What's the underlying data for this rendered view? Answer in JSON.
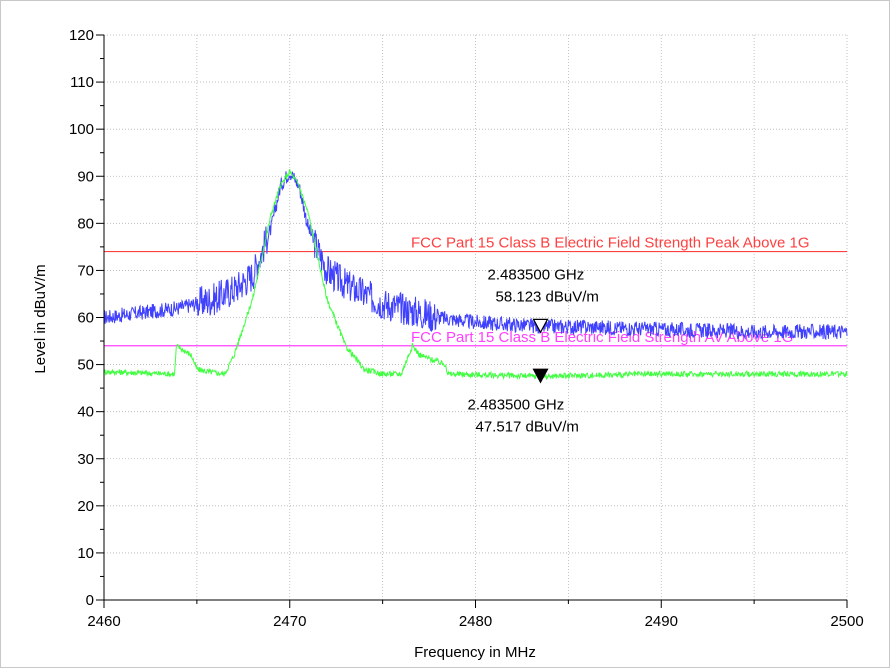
{
  "chart_data": {
    "type": "line",
    "xlabel": "Frequency in MHz",
    "ylabel": "Level in dBuV/m",
    "xlim": [
      2460,
      2500
    ],
    "ylim": [
      0,
      120
    ],
    "x_ticks": [
      "2460",
      "2470",
      "2480",
      "2490",
      "2500"
    ],
    "y_ticks": [
      "0",
      "10",
      "20",
      "30",
      "40",
      "50",
      "60",
      "70",
      "80",
      "90",
      "100",
      "110",
      "120"
    ],
    "grid": true,
    "colors": {
      "peak": "#4040ff",
      "average": "#40ff40",
      "limit_peak": "#ff4040",
      "limit_average": "#ff40ff"
    },
    "series": [
      {
        "key": "peak",
        "x": [
          2460,
          2462,
          2464,
          2465,
          2466,
          2467,
          2468,
          2469,
          2469.5,
          2470,
          2470.5,
          2471,
          2472,
          2473,
          2474,
          2475,
          2476,
          2478,
          2480,
          2483.5,
          2486,
          2490,
          2495,
          2500
        ],
        "y": [
          60,
          61,
          62,
          63,
          64,
          66,
          69,
          79,
          88,
          91,
          88,
          79,
          70,
          67,
          65,
          63,
          62,
          60,
          59,
          58.1,
          58,
          57.5,
          57,
          57
        ]
      },
      {
        "key": "average",
        "x": [
          2460,
          2463.8,
          2463.9,
          2464.7,
          2465,
          2465.6,
          2466.5,
          2467,
          2468,
          2469,
          2469.5,
          2470,
          2470.5,
          2471,
          2472,
          2473,
          2474,
          2475,
          2476,
          2476.6,
          2477,
          2478.4,
          2478.5,
          2483.5,
          2490,
          2500
        ],
        "y": [
          48.5,
          48,
          54,
          52,
          49,
          48.5,
          48,
          52,
          64,
          82,
          88,
          91,
          88,
          82,
          64,
          54,
          49,
          48,
          48,
          54,
          52,
          50,
          48,
          47.5,
          48,
          48
        ]
      },
      {
        "key": "limit_peak",
        "x": [
          2460,
          2500
        ],
        "y": [
          74,
          74
        ]
      },
      {
        "key": "limit_average",
        "x": [
          2460,
          2500
        ],
        "y": [
          54,
          54
        ]
      }
    ],
    "limits": [
      {
        "key": "limit_peak",
        "label": "FCC Part 15 Class B Electric Field Strength Peak Above 1G",
        "value": 74
      },
      {
        "key": "limit_average",
        "label": "FCC Part 15 Class B Electric Field Strength AV Above 1G",
        "value": 54
      }
    ],
    "markers": [
      {
        "key": "peak",
        "style": "open",
        "x": 2483.5,
        "y": 58.123,
        "freq_label": "2.483500 GHz",
        "level_label": "58.123 dBuV/m",
        "label_pos": "above"
      },
      {
        "key": "average",
        "style": "filled",
        "x": 2483.5,
        "y": 47.517,
        "freq_label": "2.483500 GHz",
        "level_label": "47.517 dBuV/m",
        "label_pos": "below"
      }
    ]
  }
}
